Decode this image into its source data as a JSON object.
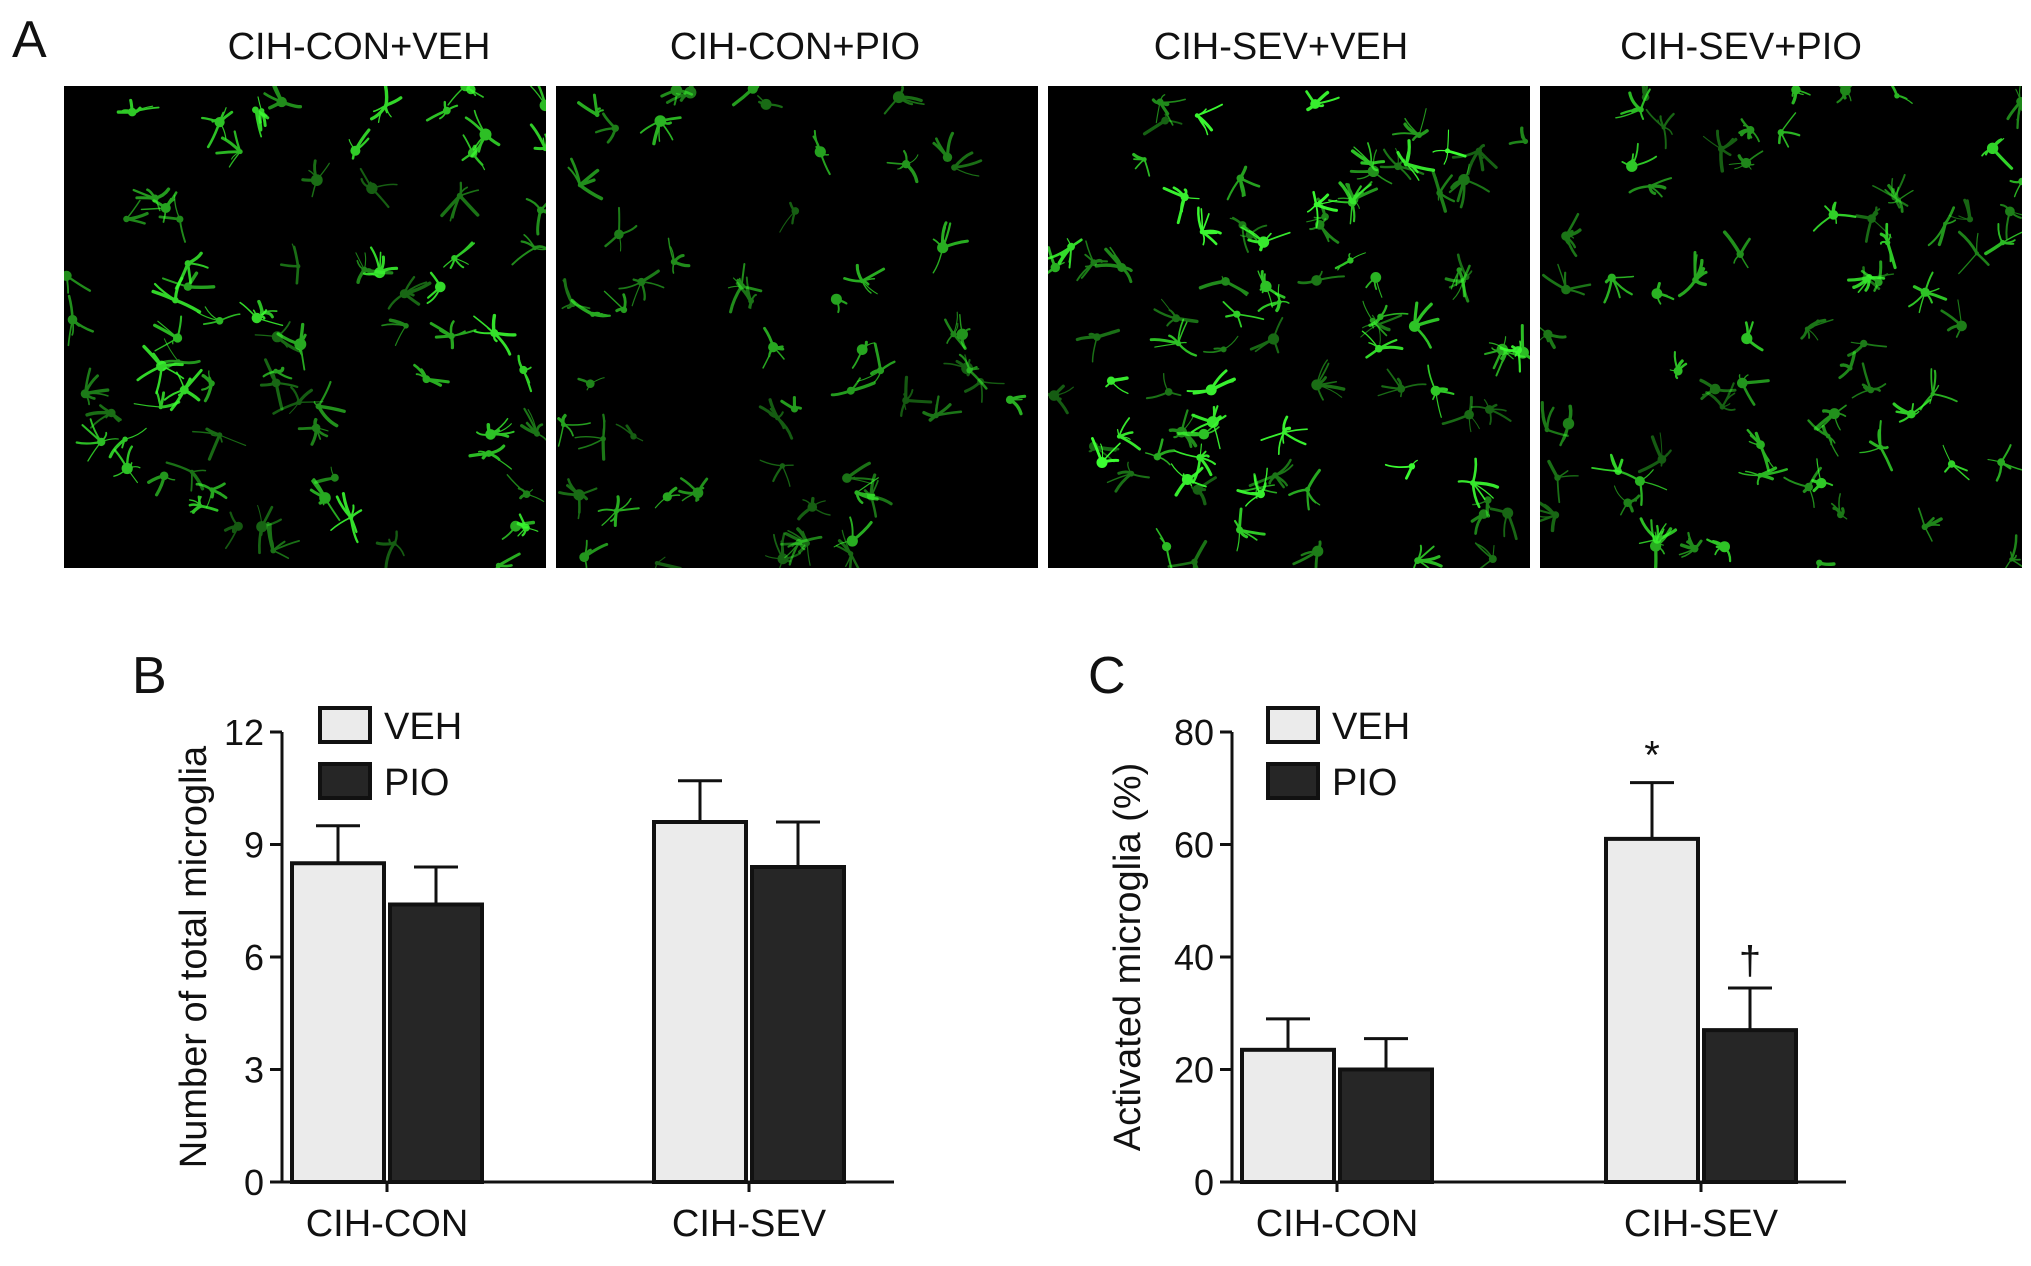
{
  "panels": {
    "a_letter": "A",
    "b_letter": "B",
    "c_letter": "C"
  },
  "micrographs": [
    {
      "label": "CIH-CON+VEH",
      "brightness": 0.85,
      "seed": 11
    },
    {
      "label": "CIH-CON+PIO",
      "brightness": 0.55,
      "seed": 23
    },
    {
      "label": "CIH-SEV+VEH",
      "brightness": 1.0,
      "seed": 37
    },
    {
      "label": "CIH-SEV+PIO",
      "brightness": 0.75,
      "seed": 53
    }
  ],
  "colors": {
    "veh": "#ebebeb",
    "pio": "#262626",
    "axis": "#111111",
    "stain": "#3cff32"
  },
  "chart_data": [
    {
      "type": "bar",
      "panel": "B",
      "categories": [
        "CIH-CON",
        "CIH-SEV"
      ],
      "ylabel": "Number of total microglia",
      "ylim": [
        0,
        12
      ],
      "yticks": [
        "0",
        "3",
        "6",
        "9",
        "12"
      ],
      "legend_placement": "top-left",
      "series": [
        {
          "name": "VEH",
          "values": [
            8.5,
            9.6
          ],
          "errors": [
            1.0,
            1.1
          ],
          "annotations": [
            "",
            ""
          ]
        },
        {
          "name": "PIO",
          "values": [
            7.4,
            8.4
          ],
          "errors": [
            1.0,
            1.2
          ],
          "annotations": [
            "",
            ""
          ]
        }
      ]
    },
    {
      "type": "bar",
      "panel": "C",
      "categories": [
        "CIH-CON",
        "CIH-SEV"
      ],
      "ylabel": "Activated microglia (%)",
      "ylim": [
        0,
        80
      ],
      "yticks": [
        "0",
        "20",
        "40",
        "60",
        "80"
      ],
      "legend_placement": "top-left",
      "series": [
        {
          "name": "VEH",
          "values": [
            23.5,
            61
          ],
          "errors": [
            5.5,
            10
          ],
          "annotations": [
            "",
            "*"
          ]
        },
        {
          "name": "PIO",
          "values": [
            20,
            27
          ],
          "errors": [
            5.5,
            7.5
          ],
          "annotations": [
            "",
            "†"
          ]
        }
      ]
    }
  ]
}
